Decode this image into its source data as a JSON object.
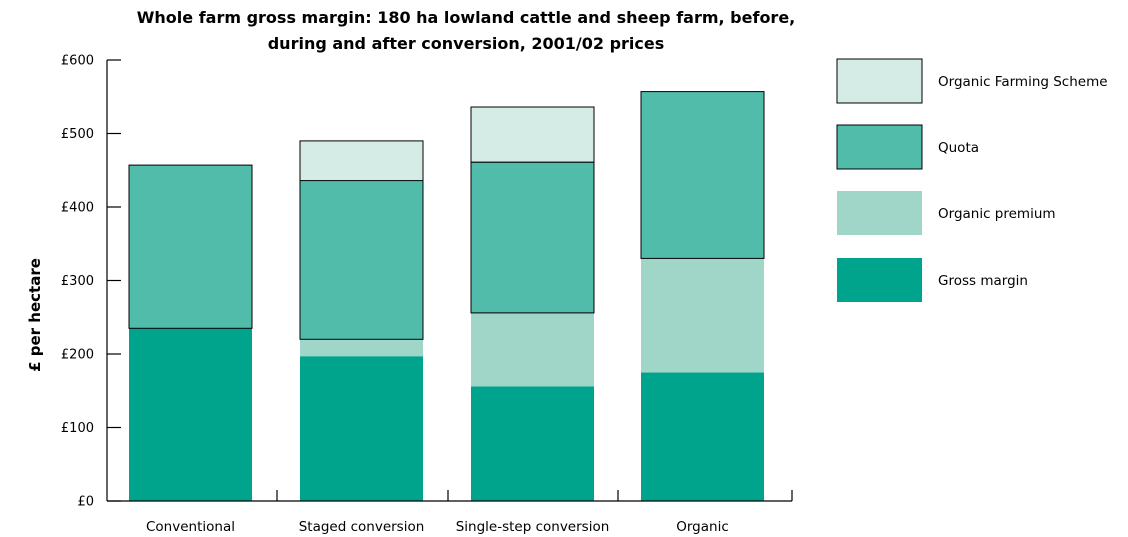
{
  "chart_data": {
    "type": "bar",
    "stacked": true,
    "title": "Whole farm gross margin: 180 ha lowland cattle and sheep farm, before, during and after conversion, 2001/02 prices",
    "title_lines": [
      "Whole farm gross margin: 180 ha lowland cattle and sheep farm, before,",
      "during and after conversion, 2001/02 prices"
    ],
    "xlabel": "",
    "ylabel": "£ per hectare",
    "ylim": [
      0,
      600
    ],
    "yticks": [
      0,
      100,
      200,
      300,
      400,
      500,
      600
    ],
    "ytick_labels": [
      "£0",
      "£100",
      "£200",
      "£300",
      "£400",
      "£500",
      "£600"
    ],
    "categories": [
      "Conventional",
      "Staged conversion",
      "Single-step conversion",
      "Organic"
    ],
    "series": [
      {
        "name": "Gross margin",
        "color": "#00a48c",
        "values": [
          235,
          197,
          156,
          175
        ]
      },
      {
        "name": "Organic premium",
        "color": "#a0d6c8",
        "values": [
          0,
          23,
          100,
          155
        ]
      },
      {
        "name": "Quota",
        "color": "#52bcab",
        "values": [
          222,
          216,
          205,
          227
        ]
      },
      {
        "name": "Organic Farming Scheme",
        "color": "#d5ebe5",
        "values": [
          0,
          54,
          75,
          0
        ]
      }
    ],
    "legend_order": [
      "Organic Farming Scheme",
      "Quota",
      "Organic premium",
      "Gross margin"
    ],
    "legend_position": "right",
    "grid": false
  }
}
